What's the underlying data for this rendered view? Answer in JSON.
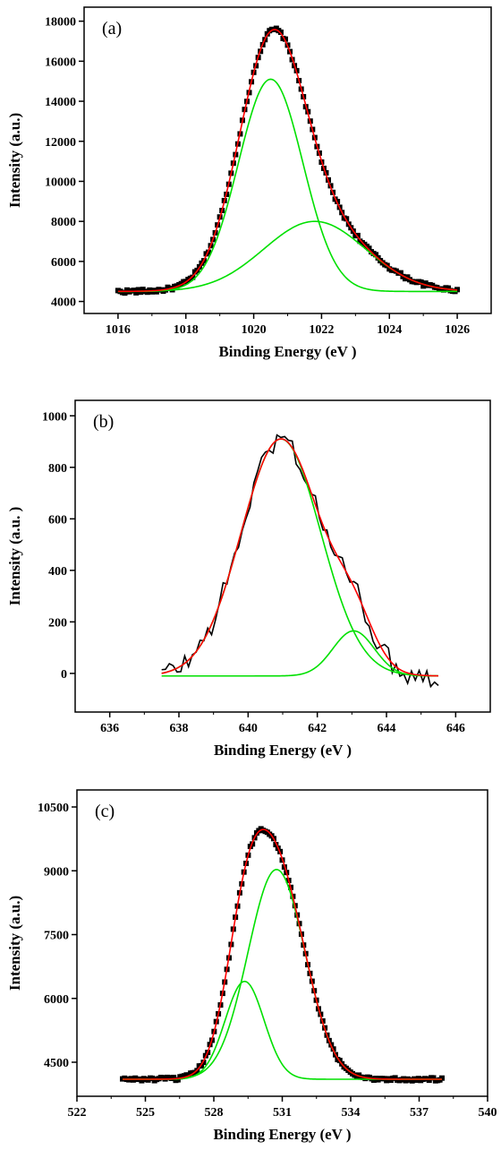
{
  "chart_data": [
    {
      "type": "line",
      "panel_label": "(a)",
      "xlabel": "Binding Energy (eV )",
      "ylabel": "Intensity (a.u.)",
      "xlim": [
        1015,
        1027
      ],
      "ylim": [
        3400,
        18700
      ],
      "x_ticks": [
        1016,
        1018,
        1020,
        1022,
        1024,
        1026
      ],
      "y_ticks": [
        4000,
        6000,
        8000,
        10000,
        12000,
        14000,
        16000,
        18000
      ],
      "x_tick_labels": [
        "1016",
        "1018",
        "1020",
        "1022",
        "1024",
        "1026"
      ],
      "y_tick_labels": [
        "4000",
        "6000",
        "8000",
        "10000",
        "12000",
        "14000",
        "16000",
        "18000"
      ],
      "baseline": 4500,
      "components": [
        {
          "center": 1020.5,
          "amplitude": 10600,
          "sigma": 0.95
        },
        {
          "center": 1021.8,
          "amplitude": 3500,
          "sigma": 1.5
        }
      ],
      "x_range": [
        1016,
        1026
      ],
      "experimental_style": "squares",
      "colors": {
        "raw": "#000000",
        "envelope": "#ff0000",
        "component": "#00e000"
      }
    },
    {
      "type": "line",
      "panel_label": "(b)",
      "xlabel": "Binding Energy (eV )",
      "ylabel": "Intensity (a.u. )",
      "xlim": [
        635,
        647
      ],
      "ylim": [
        -150,
        1060
      ],
      "x_ticks": [
        636,
        638,
        640,
        642,
        644,
        646
      ],
      "y_ticks": [
        0,
        200,
        400,
        600,
        800,
        1000
      ],
      "x_tick_labels": [
        "636",
        "638",
        "640",
        "642",
        "644",
        "646"
      ],
      "y_tick_labels": [
        "0",
        "200",
        "400",
        "600",
        "800",
        "1000"
      ],
      "baseline": -10,
      "components": [
        {
          "center": 640.95,
          "amplitude": 920,
          "sigma": 1.15
        },
        {
          "center": 643.05,
          "amplitude": 175,
          "sigma": 0.6
        }
      ],
      "x_range": [
        637.5,
        645.5
      ],
      "experimental_style": "line",
      "colors": {
        "raw": "#000000",
        "envelope": "#ff0000",
        "component": "#00e000"
      }
    },
    {
      "type": "line",
      "panel_label": "(c)",
      "xlabel": "Binding Energy (eV )",
      "ylabel": "Intensity (a.u.)",
      "xlim": [
        522,
        540
      ],
      "ylim": [
        3700,
        10900
      ],
      "x_ticks": [
        522,
        525,
        528,
        531,
        534,
        537,
        540
      ],
      "y_ticks": [
        4500,
        6000,
        7500,
        9000,
        10500
      ],
      "x_tick_labels": [
        "522",
        "525",
        "528",
        "531",
        "534",
        "537",
        "540"
      ],
      "y_tick_labels": [
        "4500",
        "6000",
        "7500",
        "9000",
        "10500"
      ],
      "baseline": 4100,
      "components": [
        {
          "center": 529.35,
          "amplitude": 2300,
          "sigma": 0.85
        },
        {
          "center": 530.75,
          "amplitude": 4930,
          "sigma": 1.25
        }
      ],
      "x_range": [
        524,
        538
      ],
      "experimental_style": "squares",
      "colors": {
        "raw": "#000000",
        "envelope": "#ff0000",
        "component": "#00e000"
      }
    }
  ]
}
